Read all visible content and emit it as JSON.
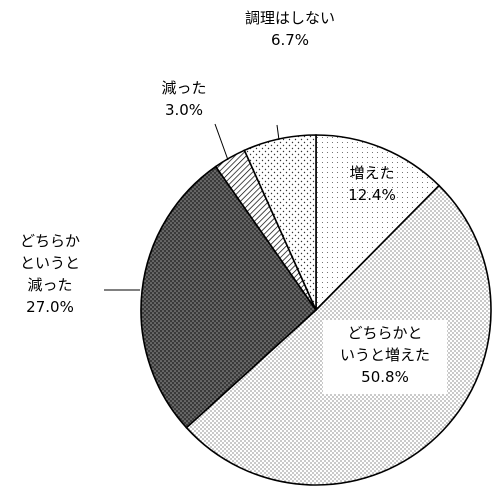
{
  "chart_data": {
    "type": "pie",
    "slices": [
      {
        "label_lines": [
          "増えた"
        ],
        "value": 12.4,
        "value_text": "12.4%",
        "pattern": "fine-dots-white"
      },
      {
        "label_lines": [
          "どちらかと",
          "いうと増えた"
        ],
        "value": 50.8,
        "value_text": "50.8%",
        "pattern": "dense-dots"
      },
      {
        "label_lines": [
          "どちらか",
          "というと",
          "減った"
        ],
        "value": 27.0,
        "value_text": "27.0%",
        "pattern": "dark-dots"
      },
      {
        "label_lines": [
          "減った"
        ],
        "value": 3.0,
        "value_text": "3.0%",
        "pattern": "diagonal-hatch"
      },
      {
        "label_lines": [
          "調理はしない"
        ],
        "value": 6.7,
        "value_text": "6.7%",
        "pattern": "sparse-dots"
      }
    ],
    "start": "12 o'clock",
    "direction": "clockwise"
  }
}
